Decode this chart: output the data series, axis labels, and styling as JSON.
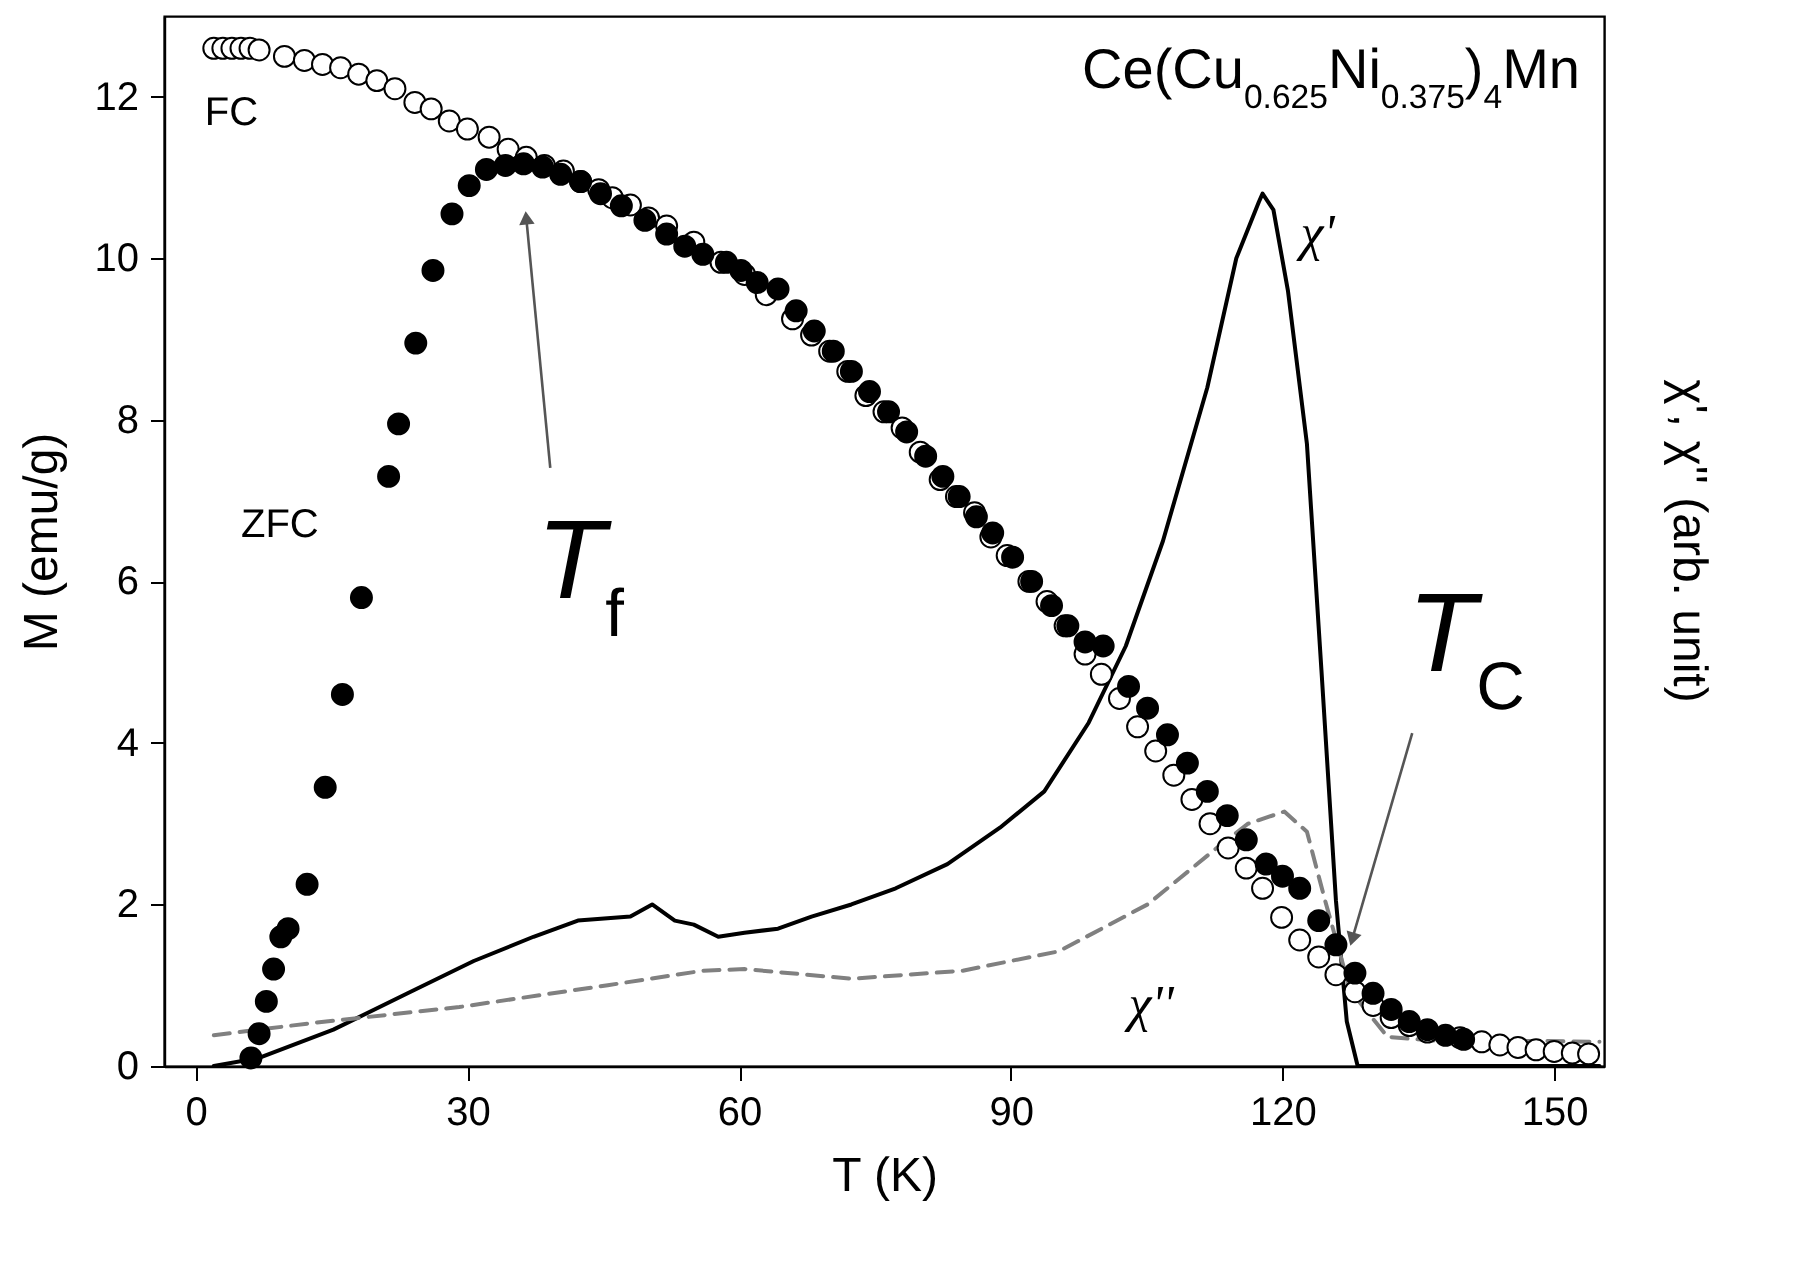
{
  "chart_data": {
    "type": "scatter",
    "title": "Ce(Cu$_{0.625}$Ni$_{0.375}$)$_{4}$Mn",
    "xlabel": "T (K)",
    "ylabel": "M (emu/g)",
    "y2label": "χ', χ'' (arb. unit)",
    "xlim": [
      -3.5,
      155.5
    ],
    "ylim": [
      0,
      13
    ],
    "xticks": [
      0,
      30,
      60,
      90,
      120,
      150
    ],
    "yticks": [
      0,
      2,
      4,
      6,
      8,
      10,
      12
    ],
    "grid": false,
    "marker": "circle",
    "annotations": [
      {
        "text": "T$_{f}$",
        "x": 36.5,
        "y": 10.5
      },
      {
        "text": "T$_{C}$",
        "x": 127.7,
        "y": 1.57
      }
    ],
    "series": [
      {
        "name": "FC",
        "color": "#ffffff",
        "x": [
          2,
          3,
          4,
          5,
          6,
          7,
          9.8,
          12,
          14,
          16,
          18,
          20,
          22,
          24.2,
          26,
          28,
          30,
          32.4,
          34.5,
          36.5,
          38.5,
          40.6,
          42.5,
          44.5,
          46,
          48,
          50,
          52,
          55,
          58,
          60.6,
          63,
          65.9,
          68,
          70,
          72,
          74,
          76,
          78,
          80,
          82.2,
          84,
          86,
          87.8,
          89.6,
          92,
          94,
          96,
          98.2,
          100,
          102,
          104,
          106,
          108,
          110,
          112,
          114,
          116,
          117.8,
          119.9,
          121.9,
          124,
          125.9,
          128,
          130,
          132,
          134,
          136,
          139.6,
          142,
          144,
          146,
          148,
          150,
          152,
          153.8
        ],
        "values": [
          12.6,
          12.6,
          12.6,
          12.6,
          12.6,
          12.58,
          12.5,
          12.45,
          12.4,
          12.36,
          12.28,
          12.2,
          12.1,
          11.93,
          11.85,
          11.7,
          11.6,
          11.5,
          11.35,
          11.25,
          11.15,
          11.08,
          10.95,
          10.85,
          10.75,
          10.66,
          10.5,
          10.4,
          10.2,
          9.95,
          9.8,
          9.55,
          9.25,
          9.05,
          8.85,
          8.6,
          8.3,
          8.1,
          7.9,
          7.6,
          7.26,
          7.05,
          6.85,
          6.55,
          6.32,
          6,
          5.75,
          5.45,
          5.1,
          4.85,
          4.55,
          4.2,
          3.9,
          3.6,
          3.3,
          3,
          2.7,
          2.45,
          2.2,
          1.84,
          1.56,
          1.35,
          1.13,
          0.92,
          0.75,
          0.6,
          0.5,
          0.42,
          0.35,
          0.3,
          0.26,
          0.23,
          0.2,
          0.18,
          0.16,
          0.15
        ]
      },
      {
        "name": "ZFC",
        "color": "#000000",
        "x": [
          6.1,
          7,
          7.8,
          8.6,
          9.4,
          10.2,
          12.3,
          14.3,
          16.2,
          18.3,
          21.3,
          22.4,
          24.3,
          26.2,
          28.3,
          30.2,
          32.1,
          34.2,
          36.2,
          38.3,
          40.3,
          42.5,
          44.7,
          47,
          49.6,
          52,
          54,
          56,
          58.6,
          60.2,
          62,
          64.3,
          66.3,
          68.3,
          70.4,
          72.4,
          74.4,
          76.5,
          78.5,
          80.6,
          82.5,
          84.3,
          86.2,
          88,
          90.2,
          92.3,
          94.5,
          96.3,
          98.2,
          100.2,
          103,
          105.1,
          107.3,
          109.5,
          111.7,
          113.9,
          116,
          118.2,
          120,
          121.9,
          124,
          125.9,
          128,
          130,
          132,
          134,
          136,
          138,
          140
        ],
        "values": [
          0.1,
          0.4,
          0.8,
          1.2,
          1.6,
          1.7,
          2.25,
          3.45,
          4.6,
          5.8,
          7.3,
          7.95,
          8.95,
          9.85,
          10.55,
          10.9,
          11.1,
          11.15,
          11.17,
          11.13,
          11.04,
          10.95,
          10.8,
          10.65,
          10.47,
          10.3,
          10.15,
          10.05,
          9.95,
          9.85,
          9.7,
          9.62,
          9.35,
          9.1,
          8.85,
          8.6,
          8.35,
          8.1,
          7.85,
          7.55,
          7.3,
          7.05,
          6.8,
          6.6,
          6.3,
          6,
          5.7,
          5.45,
          5.25,
          5.2,
          4.7,
          4.43,
          4.1,
          3.75,
          3.4,
          3.1,
          2.8,
          2.5,
          2.35,
          2.2,
          1.8,
          1.5,
          1.15,
          0.9,
          0.7,
          0.55,
          0.45,
          0.38,
          0.33
        ]
      },
      {
        "name": "χ'",
        "type": "line",
        "color": "#000000",
        "line_style": "solid",
        "marker": "none",
        "x": [
          2,
          7,
          15.2,
          23.4,
          30.7,
          37.3,
          42.2,
          48,
          50.4,
          52.9,
          55,
          57.7,
          60.6,
          64.3,
          68,
          72.4,
          77.3,
          83,
          88.8,
          93.7,
          98.6,
          102.7,
          106.8,
          111.7,
          114.9,
          117.4,
          117.8,
          119,
          120.6,
          122.7,
          124.3,
          125.9,
          127.1,
          128.3,
          135,
          145,
          155
        ],
        "values": [
          0,
          0.1,
          0.45,
          0.9,
          1.3,
          1.6,
          1.8,
          1.85,
          2,
          1.8,
          1.75,
          1.6,
          1.65,
          1.7,
          1.85,
          2,
          2.2,
          2.5,
          2.95,
          3.4,
          4.25,
          5.2,
          6.5,
          8.4,
          10,
          10.7,
          10.8,
          10.6,
          9.6,
          7.7,
          4.9,
          2.05,
          0.55,
          0,
          0,
          0,
          0
        ]
      },
      {
        "name": "χ''",
        "type": "line",
        "color": "#808080",
        "line_style": "dashed",
        "marker": "none",
        "x": [
          2,
          12.7,
          29.1,
          45.5,
          56,
          60.6,
          72.4,
          84.7,
          95.3,
          105.1,
          113.3,
          116.2,
          120.2,
          122.7,
          124.7,
          127.5,
          131.6,
          137.2,
          148.5,
          155
        ],
        "values": [
          0.38,
          0.53,
          0.73,
          1,
          1.18,
          1.2,
          1.08,
          1.18,
          1.42,
          2,
          2.75,
          3,
          3.15,
          2.9,
          2.05,
          0.93,
          0.36,
          0.31,
          0.31,
          0.3
        ]
      }
    ]
  }
}
